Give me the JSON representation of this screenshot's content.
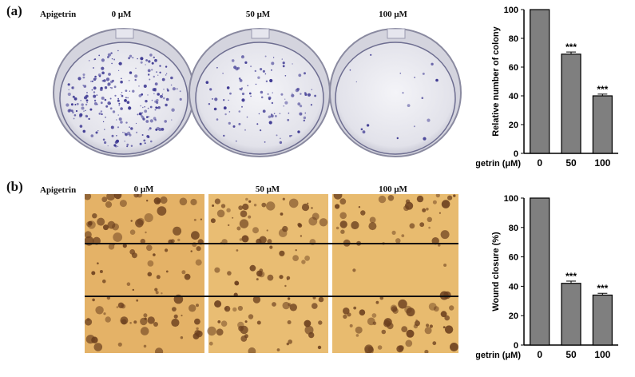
{
  "panel_a": {
    "label": "(a)",
    "row_label": "Apigetrin",
    "doses": [
      "0 μM",
      "50 μM",
      "100 μM"
    ]
  },
  "panel_b": {
    "label": "(b)",
    "row_label": "Apigetrin",
    "doses": [
      "0 μM",
      "50 μM",
      "100 μM"
    ]
  },
  "colors": {
    "bar_fill": "#7f7f7f",
    "plate_stain": "#3f3a93",
    "wound_bg": "#e8b86a",
    "cell_dark": "#6b3f1e"
  },
  "chart_data": [
    {
      "type": "bar",
      "categories": [
        "0",
        "50",
        "100"
      ],
      "values": [
        100,
        69,
        40
      ],
      "errors": [
        0,
        1.5,
        1.2
      ],
      "annotations": [
        "",
        "***",
        "***"
      ],
      "xlabel": "Apigetrin (μM)",
      "ylabel": "Relative number of colony",
      "ylim": [
        0,
        100
      ],
      "yticks": [
        0,
        20,
        40,
        60,
        80,
        100
      ]
    },
    {
      "type": "bar",
      "categories": [
        "0",
        "50",
        "100"
      ],
      "values": [
        100,
        42,
        34
      ],
      "errors": [
        0,
        1.5,
        1.2
      ],
      "annotations": [
        "",
        "***",
        "***"
      ],
      "xlabel": "Apigetrin (μM)",
      "ylabel": "Wound closure (%)",
      "ylim": [
        0,
        100
      ],
      "yticks": [
        0,
        20,
        40,
        60,
        80,
        100
      ]
    }
  ]
}
